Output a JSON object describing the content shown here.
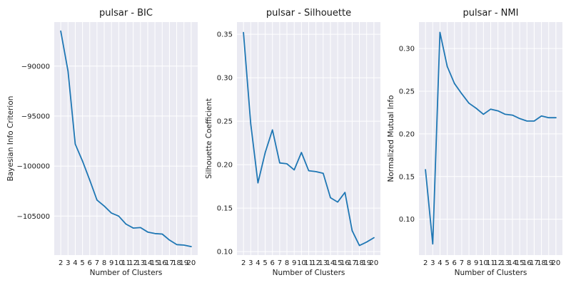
{
  "chart_data": [
    {
      "type": "line",
      "title": "pulsar - BIC",
      "xlabel": "Number of Clusters",
      "ylabel": "Bayesian Info Criterion",
      "xlim": [
        1.1,
        20.9
      ],
      "ylim": [
        -108900,
        -85600
      ],
      "yticks": [
        -90000,
        -95000,
        -100000,
        -105000
      ],
      "yticklabels": [
        "−90000",
        "−95000",
        "−100000",
        "−105000"
      ],
      "x": [
        2,
        3,
        4,
        5,
        6,
        7,
        8,
        9,
        10,
        11,
        12,
        13,
        14,
        15,
        16,
        17,
        18,
        19,
        20
      ],
      "series": [
        {
          "values": [
            -86500,
            -90500,
            -97800,
            -99500,
            -101400,
            -103400,
            -104000,
            -104700,
            -105000,
            -105800,
            -106200,
            -106150,
            -106600,
            -106750,
            -106800,
            -107400,
            -107850,
            -107900,
            -108050
          ]
        }
      ]
    },
    {
      "type": "line",
      "title": "pulsar - Silhouette",
      "xlabel": "Number of Clusters",
      "ylabel": "Silhouette Coefficient",
      "xlim": [
        1.1,
        20.9
      ],
      "ylim": [
        0.096,
        0.364
      ],
      "yticks": [
        0.1,
        0.15,
        0.2,
        0.25,
        0.3,
        0.35
      ],
      "yticklabels": [
        "0.10",
        "0.15",
        "0.20",
        "0.25",
        "0.30",
        "0.35"
      ],
      "x": [
        2,
        3,
        4,
        5,
        6,
        7,
        8,
        9,
        10,
        11,
        12,
        13,
        14,
        15,
        16,
        17,
        18,
        19,
        20
      ],
      "series": [
        {
          "values": [
            0.352,
            0.247,
            0.179,
            0.214,
            0.24,
            0.202,
            0.201,
            0.194,
            0.214,
            0.193,
            0.192,
            0.19,
            0.162,
            0.157,
            0.168,
            0.124,
            0.107,
            0.111,
            0.116
          ]
        }
      ]
    },
    {
      "type": "line",
      "title": "pulsar - NMI",
      "xlabel": "Number of Clusters",
      "ylabel": "Normalized Mutual Info",
      "xlim": [
        1.1,
        20.9
      ],
      "ylim": [
        0.058,
        0.331
      ],
      "yticks": [
        0.1,
        0.15,
        0.2,
        0.25,
        0.3
      ],
      "yticklabels": [
        "0.10",
        "0.15",
        "0.20",
        "0.25",
        "0.30"
      ],
      "x": [
        2,
        3,
        4,
        5,
        6,
        7,
        8,
        9,
        10,
        11,
        12,
        13,
        14,
        15,
        16,
        17,
        18,
        19,
        20
      ],
      "series": [
        {
          "values": [
            0.158,
            0.071,
            0.319,
            0.279,
            0.259,
            0.247,
            0.236,
            0.23,
            0.223,
            0.229,
            0.227,
            0.223,
            0.222,
            0.218,
            0.215,
            0.215,
            0.221,
            0.219,
            0.219
          ]
        }
      ]
    }
  ],
  "xticklabels": [
    "2",
    "3",
    "4",
    "5",
    "6",
    "7",
    "8",
    "9",
    "10",
    "11",
    "12",
    "13",
    "14",
    "15",
    "16",
    "17",
    "18",
    "19",
    "20"
  ],
  "colors": {
    "line": "#1f77b4",
    "plot_background": "#eaeaf2",
    "grid": "#ffffff"
  },
  "grid": true
}
